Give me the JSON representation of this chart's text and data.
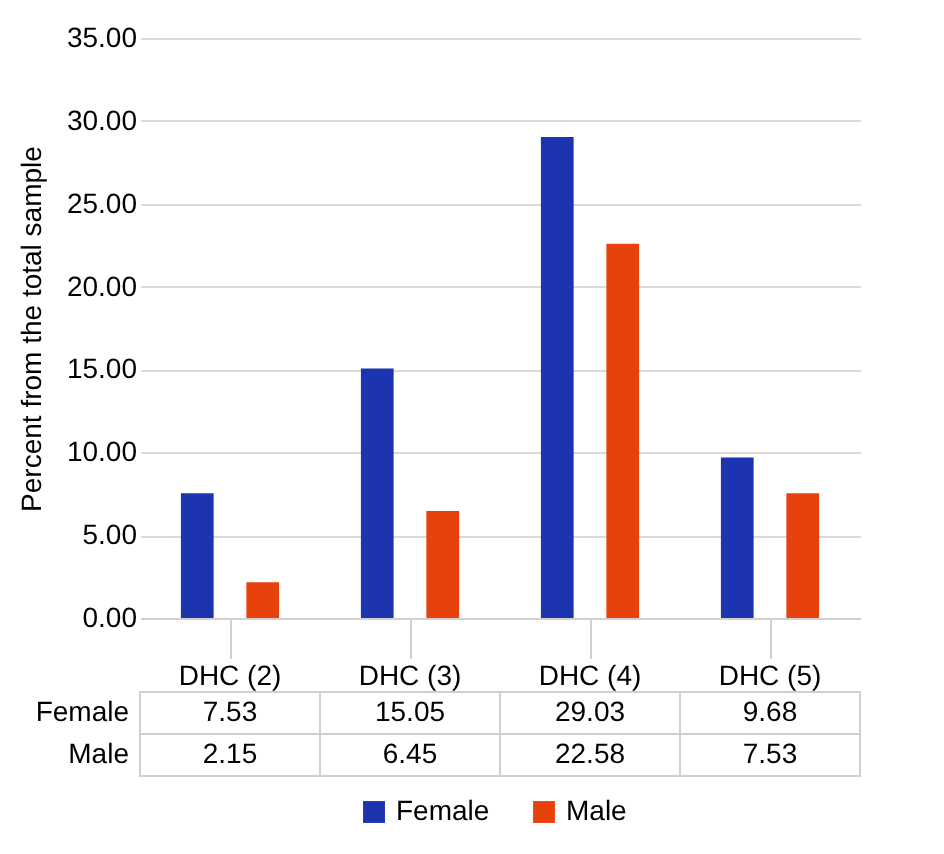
{
  "chart_data": {
    "type": "bar",
    "ylabel": "Percent from the total sample",
    "categories": [
      "DHC (2)",
      "DHC (3)",
      "DHC (4)",
      "DHC (5)"
    ],
    "series": [
      {
        "name": "Female",
        "color": "#1c34b0",
        "values": [
          7.53,
          15.05,
          29.03,
          9.68
        ]
      },
      {
        "name": "Male",
        "color": "#e8420c",
        "values": [
          2.15,
          6.45,
          22.58,
          7.53
        ]
      }
    ],
    "ylim": [
      0,
      35
    ],
    "yticks": [
      {
        "value": 0,
        "label": "0.00"
      },
      {
        "value": 5,
        "label": "5.00"
      },
      {
        "value": 10,
        "label": "10.00"
      },
      {
        "value": 15,
        "label": "15.00"
      },
      {
        "value": 20,
        "label": "20.00"
      },
      {
        "value": 25,
        "label": "25.00"
      },
      {
        "value": 30,
        "label": "30.00"
      },
      {
        "value": 35,
        "label": "35.00"
      }
    ],
    "grid": "y",
    "legend": "bottom",
    "data_labels": true
  }
}
